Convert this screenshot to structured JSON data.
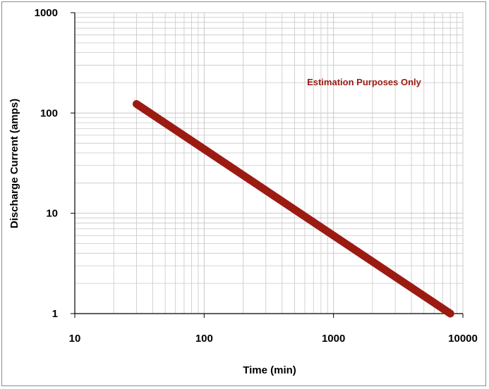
{
  "chart_data": {
    "type": "line",
    "title": "",
    "xlabel": "Time (min)",
    "ylabel": "Discharge Current (amps)",
    "x_scale": "log",
    "y_scale": "log",
    "xlim": [
      10,
      10000
    ],
    "ylim": [
      1,
      1000
    ],
    "x_ticks": [
      "10",
      "100",
      "1000",
      "10000"
    ],
    "y_ticks": [
      "1",
      "10",
      "100",
      "1000"
    ],
    "grid": true,
    "legend": "none",
    "annotation": "Estimation Purposes Only",
    "series": [
      {
        "color": "#9b1b12",
        "x": [
          30,
          8000
        ],
        "y": [
          123,
          1
        ]
      }
    ],
    "colors": {
      "series": "#9b1b12",
      "annotation": "#9b1b12",
      "grid": "#c8c8c8",
      "axis": "#000000"
    }
  }
}
